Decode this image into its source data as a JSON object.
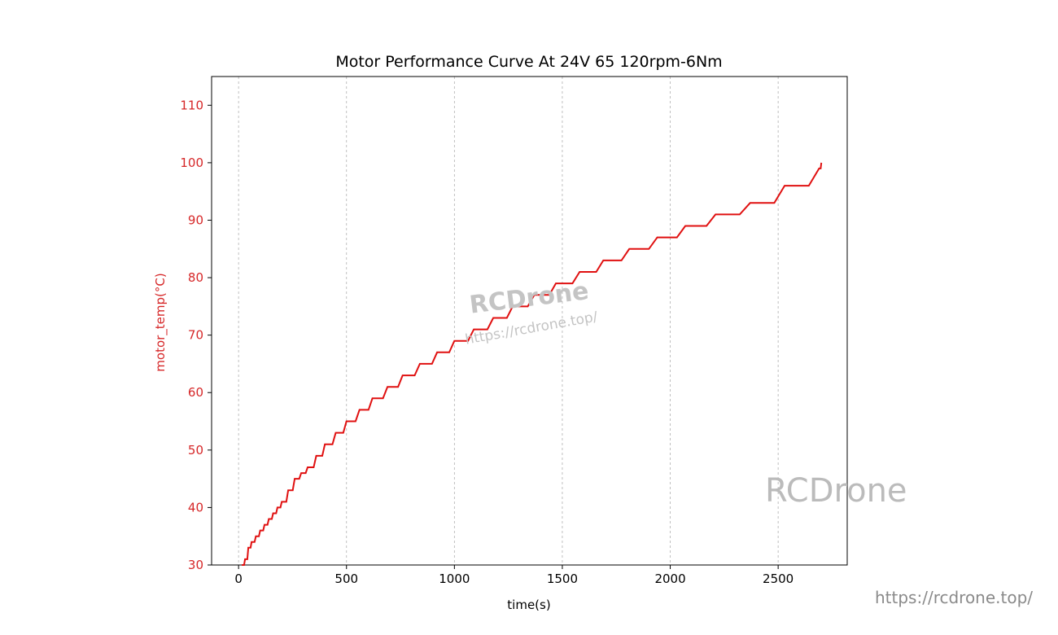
{
  "chart_data": {
    "type": "line",
    "title": "Motor Performance Curve At 24V 65 120rpm-6Nm",
    "xlabel": "time(s)",
    "ylabel": "motor_temp(°C)",
    "xlim": [
      -125,
      2820
    ],
    "ylim": [
      30,
      115
    ],
    "xticks": [
      0,
      500,
      1000,
      1500,
      2000,
      2500
    ],
    "yticks": [
      30,
      40,
      50,
      60,
      70,
      80,
      90,
      100,
      110
    ],
    "grid": "vertical dashed",
    "colors": {
      "line": "#e01010",
      "ylabel": "#d62728",
      "axis": "#000000",
      "grid": "#b0b0b0"
    },
    "series": [
      {
        "x": [
          15,
          30,
          45,
          60,
          80,
          100,
          120,
          140,
          160,
          180,
          200,
          230,
          260,
          290,
          320,
          360,
          400,
          450,
          500,
          560,
          620,
          690,
          760,
          840,
          920,
          1000,
          1090,
          1180,
          1270,
          1370,
          1470,
          1580,
          1690,
          1810,
          1940,
          2070,
          2210,
          2370,
          2530,
          2690,
          2700
        ],
        "y": [
          29,
          31,
          33,
          34,
          35,
          36,
          37,
          38,
          39,
          40,
          41,
          43,
          45,
          46,
          47,
          49,
          51,
          53,
          55,
          57,
          59,
          61,
          63,
          65,
          67,
          69,
          71,
          73,
          75,
          77,
          79,
          81,
          83,
          85,
          87,
          89,
          91,
          93,
          96,
          99,
          100
        ]
      }
    ]
  },
  "watermarks": {
    "center_brand": "RCDrone",
    "center_url": "https://rcdrone.top/",
    "right_brand": "RCDrone",
    "bottom_url": "https://rcdrone.top/"
  }
}
